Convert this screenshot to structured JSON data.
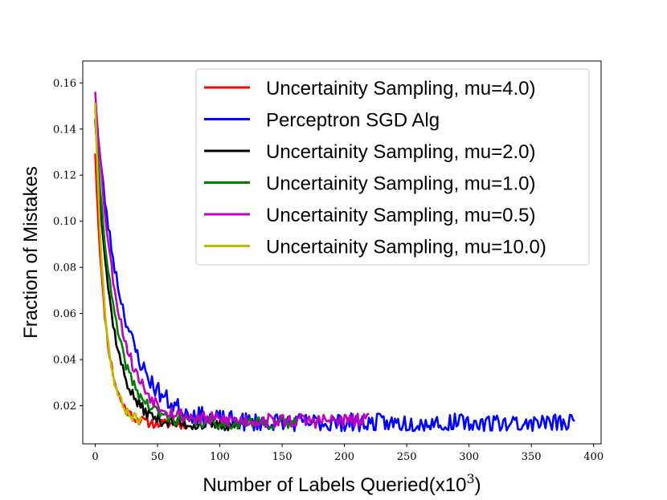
{
  "chart_data": {
    "type": "line",
    "xlabel": "Number of Labels Queried(x10",
    "xlabel_exp": "3",
    "xlabel_close": ")",
    "ylabel": "Fraction of Mistakes",
    "xlim": [
      -10,
      406
    ],
    "ylim": [
      0.0035,
      0.1695
    ],
    "xticks": [
      0,
      50,
      100,
      150,
      200,
      250,
      300,
      350,
      400
    ],
    "yticks": [
      0.02,
      0.04,
      0.06,
      0.08,
      0.1,
      0.12,
      0.14,
      0.16
    ],
    "legend_position": "top-right",
    "series": [
      {
        "name": "Uncertainity Sampling, mu=4.0)",
        "color": "#ff0000",
        "start": 0.13,
        "end": 0.012,
        "tau": 8.5,
        "xmax": 74,
        "noise": 0.0022,
        "seed": 11
      },
      {
        "name": "Perceptron SGD Alg",
        "color": "#0000ff",
        "start": 0.15,
        "end": 0.0125,
        "tau": 22,
        "xmax": 386,
        "noise": 0.0042,
        "seed": 23
      },
      {
        "name": "Uncertainity Sampling, mu=2.0)",
        "color": "#000000",
        "start": 0.145,
        "end": 0.0115,
        "tau": 13,
        "xmax": 116,
        "noise": 0.0025,
        "seed": 37
      },
      {
        "name": "Uncertainity Sampling, mu=1.0)",
        "color": "#008000",
        "start": 0.145,
        "end": 0.0125,
        "tau": 15,
        "xmax": 162,
        "noise": 0.0026,
        "seed": 41
      },
      {
        "name": "Uncertainity Sampling, mu=0.5)",
        "color": "#bf00bf",
        "start": 0.157,
        "end": 0.0135,
        "tau": 17,
        "xmax": 220,
        "noise": 0.0032,
        "seed": 53
      },
      {
        "name": "Uncertainity Sampling, mu=10.0)",
        "color": "#bfbf00",
        "start": 0.152,
        "end": 0.013,
        "tau": 7.5,
        "xmax": 38,
        "noise": 0.0022,
        "seed": 67
      }
    ]
  }
}
